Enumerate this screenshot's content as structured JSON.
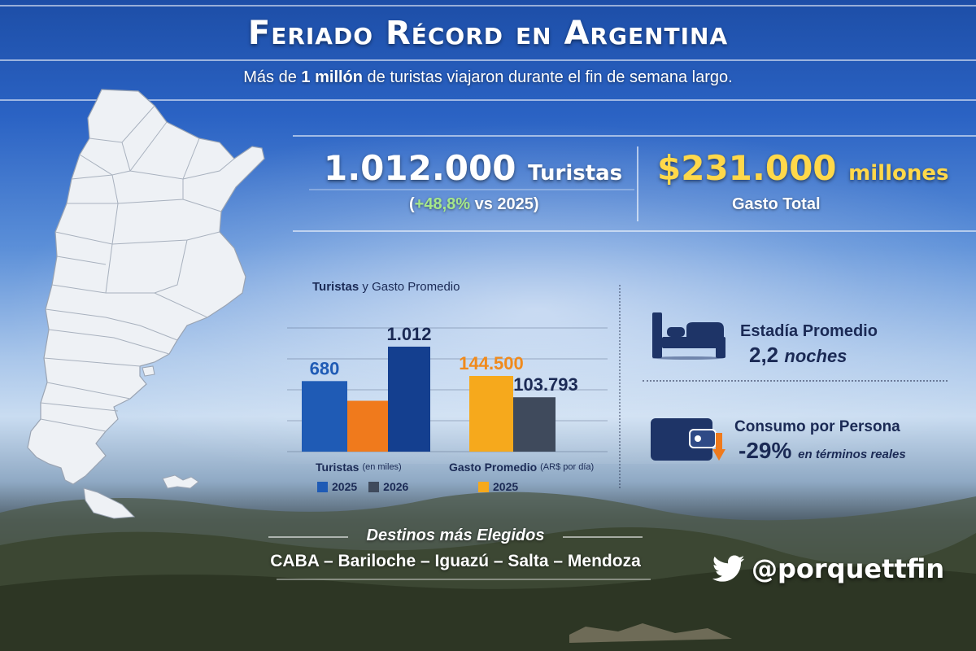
{
  "title": "Feriado Récord en Argentina",
  "subtitle": {
    "pre": "Más de ",
    "bold": "1 millón",
    "post": " de turistas viajaron durante el fin de semana largo."
  },
  "stats": {
    "tourists_value": "1.012.000",
    "tourists_unit": "Turistas",
    "tourists_change_open": "(",
    "tourists_change": "+48,8%",
    "tourists_change_rest": " vs 2025)",
    "spending_value": "$231.000",
    "spending_unit": "millones",
    "spending_label": "Gasto Total"
  },
  "chart_data": {
    "type": "bar",
    "title_bold": "Turistas",
    "title_rest": "y Gasto Promedio",
    "groups": [
      {
        "label": "Turistas",
        "label_note": "(en miles)",
        "series": [
          {
            "name": "2025",
            "value": 680,
            "label": "680"
          },
          {
            "name": "2026",
            "value": 1012,
            "label": "1.012"
          }
        ]
      },
      {
        "label": "Gasto Promedio",
        "label_note": "(AR$ por día)",
        "series": [
          {
            "name": "2025",
            "value": 144500,
            "label": "144.500"
          },
          {
            "name": "2026",
            "value": 103793,
            "label": "103.793"
          }
        ]
      }
    ],
    "legend_left": [
      "2025",
      "2026"
    ],
    "legend_right": [
      "2025"
    ],
    "grid": true
  },
  "colors": {
    "blue_2025": "#1f5bb5",
    "blue_2026": "#143f8f",
    "orange_2025": "#f07a1c",
    "gold_2025": "#f6a91c",
    "slate_2026": "#3f4a5c",
    "label_blue": "#1f5bb5",
    "label_orange": "#f08a1c",
    "label_dark": "#1b2a55"
  },
  "side": {
    "stay_label": "Estadía Promedio",
    "stay_value": "2,2",
    "stay_unit": "noches",
    "consumption_label": "Consumo por Persona",
    "consumption_value": "-29%",
    "consumption_note": "en términos reales",
    "stay_icon": "bed-icon",
    "consumption_icon": "wallet-icon"
  },
  "destinations": {
    "title": "Destinos más Elegidos",
    "list": "CABA – Bariloche – Iguazú – Salta – Mendoza"
  },
  "handle": {
    "icon": "twitter-bird-icon",
    "text": "@porquettfin"
  }
}
